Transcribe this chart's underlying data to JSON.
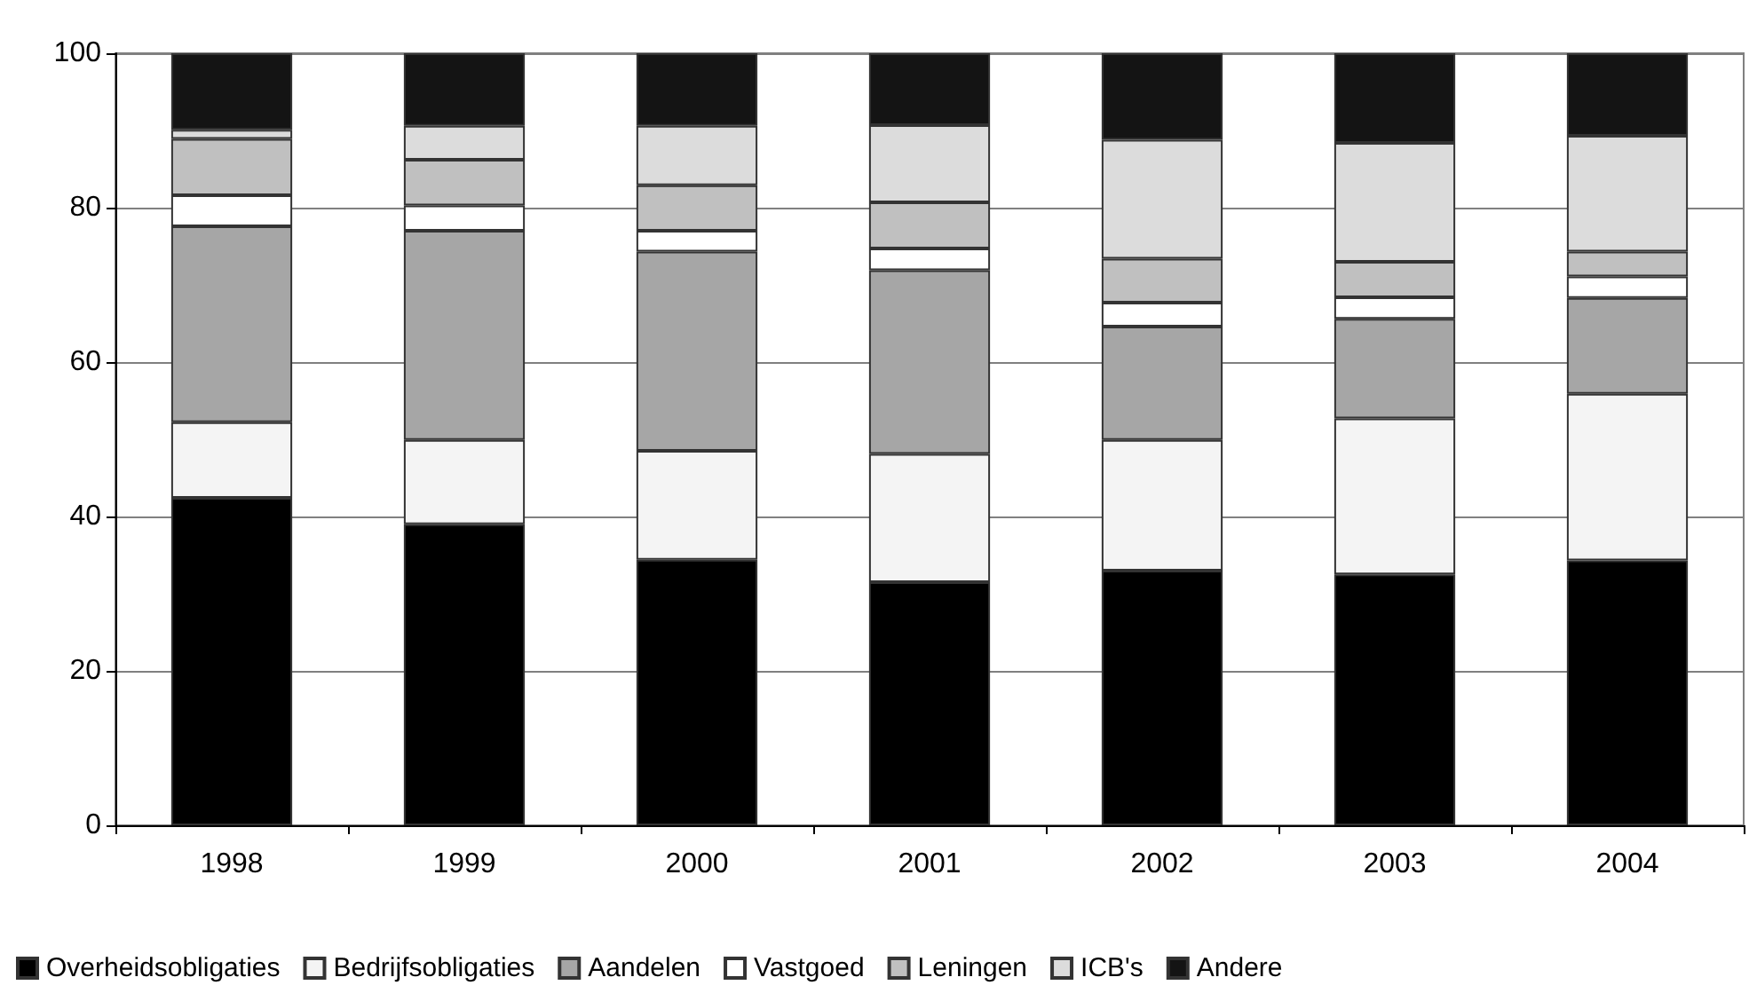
{
  "chart_data": {
    "type": "bar",
    "stacked": true,
    "categories": [
      "1998",
      "1999",
      "2000",
      "2001",
      "2002",
      "2003",
      "2004"
    ],
    "series": [
      {
        "name": "Overheidsobligaties",
        "color": "#000000",
        "values": [
          42.4,
          39.0,
          34.4,
          31.5,
          33.0,
          32.5,
          34.3
        ]
      },
      {
        "name": "Bedrijfsobligaties",
        "color": "#f4f4f4",
        "values": [
          9.8,
          10.9,
          14.1,
          16.6,
          16.9,
          20.2,
          21.6
        ]
      },
      {
        "name": "Aandelen",
        "color": "#a6a6a6",
        "values": [
          25.4,
          27.1,
          25.8,
          23.8,
          14.7,
          12.9,
          12.4
        ]
      },
      {
        "name": "Vastgoed",
        "color": "#ffffff",
        "values": [
          4.0,
          3.3,
          2.7,
          2.8,
          3.1,
          2.8,
          2.8
        ]
      },
      {
        "name": "Leningen",
        "color": "#c0c0c0",
        "values": [
          7.3,
          5.9,
          5.9,
          6.0,
          5.7,
          4.6,
          3.2
        ]
      },
      {
        "name": "ICB's",
        "color": "#dcdcdc",
        "values": [
          1.2,
          4.4,
          7.7,
          10.0,
          15.4,
          15.4,
          15.0
        ]
      },
      {
        "name": "Andere",
        "color": "#141414",
        "values": [
          9.9,
          9.4,
          9.4,
          9.3,
          11.2,
          11.6,
          10.7
        ]
      }
    ],
    "ylim": [
      0,
      100
    ],
    "yticks": [
      0,
      20,
      40,
      60,
      80,
      100
    ],
    "grid": "y",
    "legend": "bottom"
  }
}
